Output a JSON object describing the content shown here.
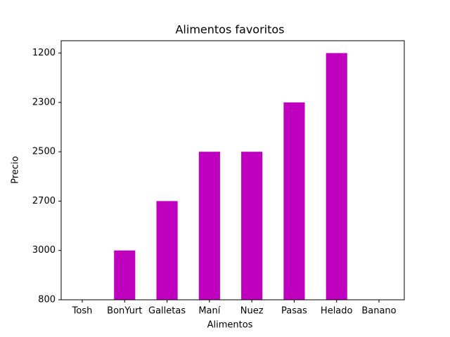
{
  "chart_data": {
    "type": "bar",
    "title": "Alimentos favoritos",
    "xlabel": "Alimentos",
    "ylabel": "Precio",
    "categories": [
      "Tosh",
      "BonYurt",
      "Galletas",
      "Maní",
      "Nuez",
      "Pasas",
      "Helado",
      "Banano"
    ],
    "values": [
      800,
      3000,
      2700,
      2500,
      2500,
      2300,
      1200,
      800
    ],
    "yscale": "categorical",
    "yticks": [
      800,
      3000,
      2700,
      2500,
      2300,
      1200
    ],
    "color": "#bf00bf",
    "grid": false
  }
}
